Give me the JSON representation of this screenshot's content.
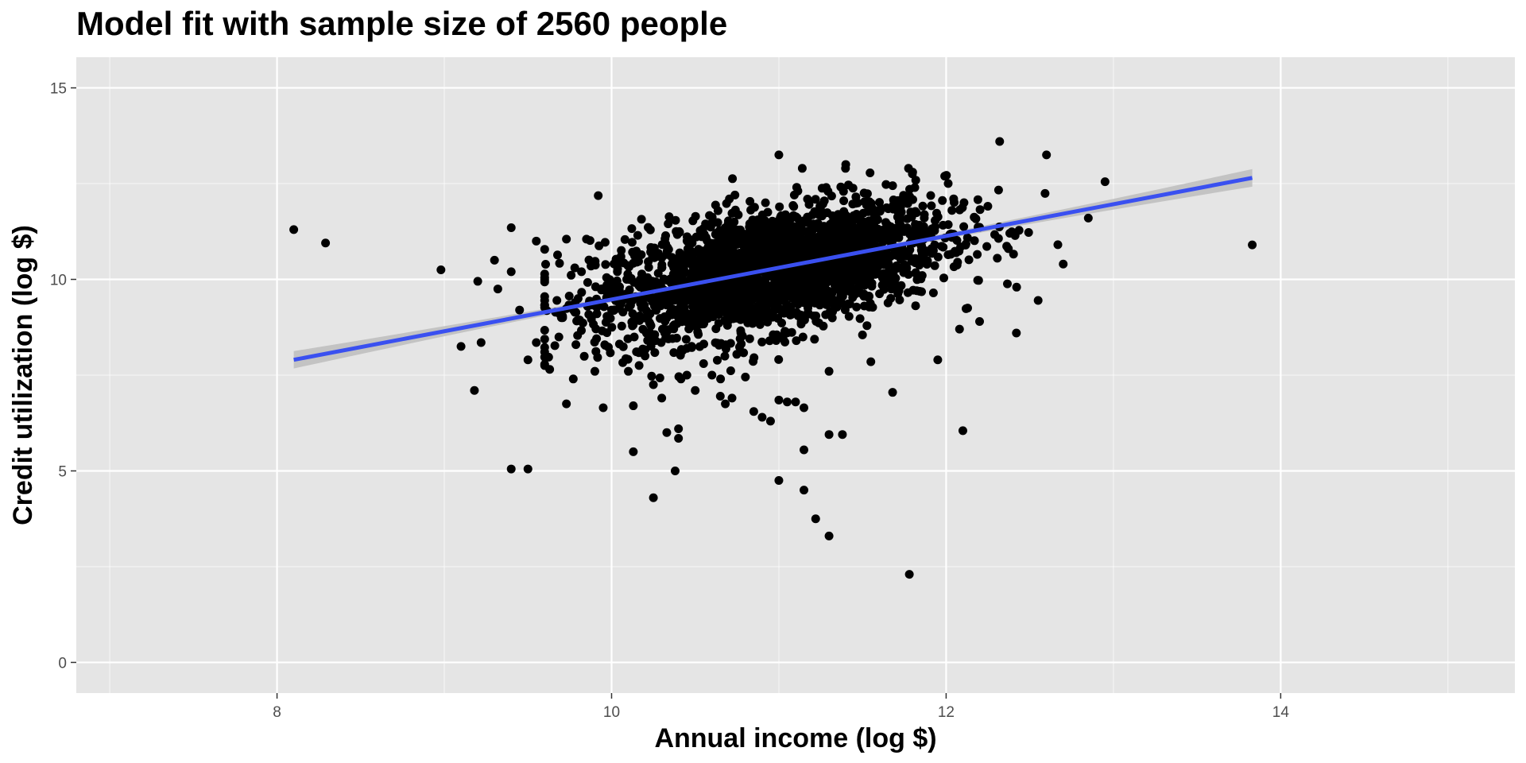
{
  "chart_data": {
    "type": "scatter",
    "title": "Model fit with sample size of 2560 people",
    "xlabel": "Annual income (log $)",
    "ylabel": "Credit utilization (log $)",
    "xlim": [
      6.8,
      15.4
    ],
    "ylim": [
      -0.8,
      15.8
    ],
    "xticks": [
      8,
      10,
      12,
      14
    ],
    "yticks": [
      0,
      5,
      10,
      15
    ],
    "grid": true,
    "sample_size": 2560,
    "colors": {
      "panel_background": "#e5e5e5",
      "gridline": "#ffffff",
      "points": "#000000",
      "fit_line": "#3a50f0",
      "confidence_band": "#bdbdbd"
    },
    "fit_line": {
      "x": [
        8.1,
        13.83
      ],
      "y": [
        7.9,
        12.65
      ]
    },
    "series": [
      {
        "points": [
          [
            8.1,
            11.3
          ],
          [
            8.29,
            10.95
          ],
          [
            8.98,
            10.25
          ],
          [
            9.1,
            8.25
          ],
          [
            9.18,
            7.1
          ],
          [
            9.2,
            9.95
          ],
          [
            9.22,
            8.35
          ],
          [
            9.3,
            10.5
          ],
          [
            9.32,
            9.75
          ],
          [
            9.4,
            11.35
          ],
          [
            9.4,
            10.2
          ],
          [
            9.4,
            5.05
          ],
          [
            9.45,
            9.2
          ],
          [
            9.5,
            7.9
          ],
          [
            9.5,
            5.05
          ],
          [
            9.55,
            11.0
          ],
          [
            9.55,
            8.35
          ],
          [
            9.6,
            7.75
          ],
          [
            9.63,
            7.65
          ],
          [
            9.7,
            9.0
          ],
          [
            9.73,
            11.05
          ],
          [
            9.73,
            6.75
          ],
          [
            9.78,
            10.3
          ],
          [
            9.8,
            9.5
          ],
          [
            9.82,
            10.2
          ],
          [
            9.85,
            11.05
          ],
          [
            9.9,
            7.6
          ],
          [
            9.95,
            6.65
          ],
          [
            10.0,
            9.2
          ],
          [
            10.1,
            7.6
          ],
          [
            10.13,
            6.7
          ],
          [
            10.13,
            5.5
          ],
          [
            10.2,
            8.0
          ],
          [
            10.25,
            7.25
          ],
          [
            10.25,
            4.3
          ],
          [
            10.3,
            6.9
          ],
          [
            10.33,
            6.0
          ],
          [
            10.38,
            5.0
          ],
          [
            10.4,
            6.1
          ],
          [
            10.4,
            5.85
          ],
          [
            10.45,
            7.5
          ],
          [
            10.5,
            7.1
          ],
          [
            10.55,
            7.8
          ],
          [
            10.6,
            7.5
          ],
          [
            10.65,
            6.95
          ],
          [
            10.68,
            6.75
          ],
          [
            10.72,
            6.9
          ],
          [
            10.8,
            7.45
          ],
          [
            10.85,
            6.55
          ],
          [
            10.9,
            6.4
          ],
          [
            10.95,
            6.3
          ],
          [
            11.0,
            4.75
          ],
          [
            11.0,
            6.85
          ],
          [
            11.0,
            13.25
          ],
          [
            11.05,
            6.8
          ],
          [
            11.1,
            6.8
          ],
          [
            11.15,
            5.55
          ],
          [
            11.15,
            4.5
          ],
          [
            11.15,
            6.65
          ],
          [
            11.22,
            3.75
          ],
          [
            11.3,
            3.3
          ],
          [
            11.3,
            5.95
          ],
          [
            11.3,
            7.6
          ],
          [
            11.38,
            5.95
          ],
          [
            11.4,
            13.0
          ],
          [
            11.5,
            8.55
          ],
          [
            11.55,
            7.85
          ],
          [
            11.68,
            7.05
          ],
          [
            11.78,
            2.3
          ],
          [
            11.8,
            12.8
          ],
          [
            11.95,
            7.9
          ],
          [
            12.08,
            8.7
          ],
          [
            12.1,
            6.05
          ],
          [
            12.2,
            8.9
          ],
          [
            12.32,
            13.6
          ],
          [
            12.42,
            8.6
          ],
          [
            12.55,
            9.45
          ],
          [
            12.6,
            13.25
          ],
          [
            12.7,
            10.4
          ],
          [
            12.85,
            11.6
          ],
          [
            12.95,
            12.55
          ],
          [
            13.83,
            10.9
          ]
        ]
      }
    ]
  }
}
